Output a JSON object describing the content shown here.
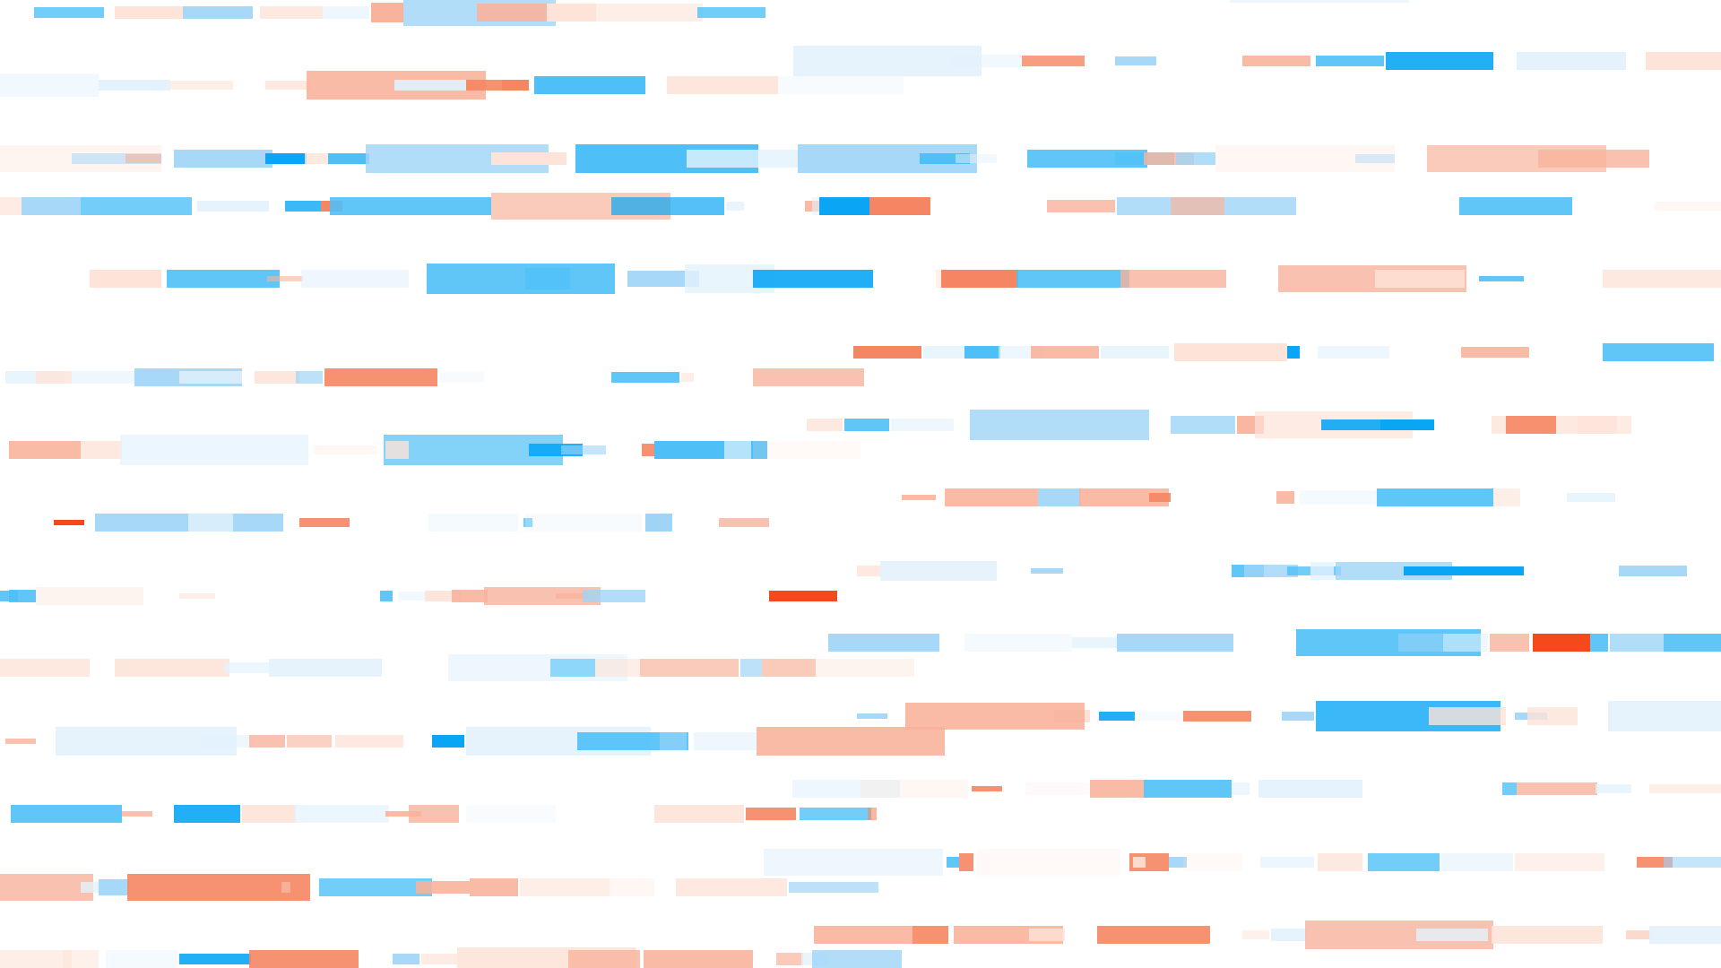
{
  "image": {
    "description_kind": "abstract-barcode-pattern",
    "background": "#ffffff",
    "palette": {
      "blue_light": "#e3f2fd",
      "blue_mid": "#9fd4f7",
      "blue_strong": "#4fc0f7",
      "blue_deep": "#0aa6f5",
      "orange_light": "#fde3d8",
      "orange_mid": "#f8b39c",
      "orange_strong": "#f58663",
      "orange_deep": "#f44a1b"
    },
    "orientation": "horizontal-rows",
    "visible_text": []
  }
}
